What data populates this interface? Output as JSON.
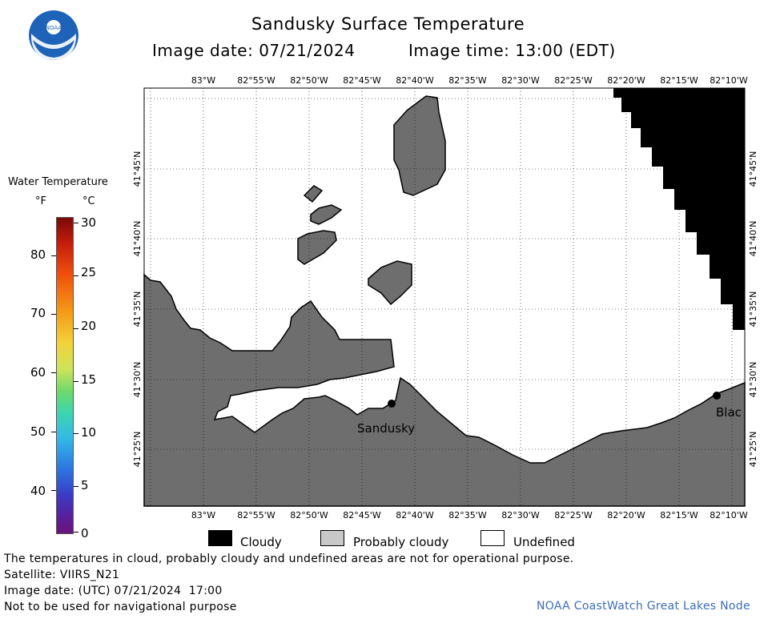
{
  "header": {
    "title": "Sandusky Surface Temperature",
    "image_date": "Image date: 07/21/2024",
    "image_time": "Image time: 13:00 (EDT)"
  },
  "logo": {
    "text": "NOAA"
  },
  "colorbar": {
    "title": "Water Temperature",
    "unit_f": "°F",
    "unit_c": "°C",
    "f_ticks": [
      "40",
      "50",
      "60",
      "70",
      "80"
    ],
    "c_ticks": [
      "0",
      "5",
      "10",
      "15",
      "20",
      "25",
      "30"
    ],
    "range_c": [
      0,
      30
    ]
  },
  "map": {
    "lon_labels": [
      "83°W",
      "82°55'W",
      "82°50'W",
      "82°45'W",
      "82°40'W",
      "82°35'W",
      "82°30'W",
      "82°25'W",
      "82°20'W",
      "82°15'W",
      "82°10'W"
    ],
    "lat_labels": [
      "41°45'N",
      "41°40'N",
      "41°35'N",
      "41°30'N",
      "41°25'N"
    ],
    "places": [
      {
        "name": "Sandusky"
      },
      {
        "name": "Blac"
      }
    ],
    "colors": {
      "land": "#6e6e6e",
      "cloudy": "#000000",
      "water": "#ffffff"
    }
  },
  "key": {
    "cloudy": "Cloudy",
    "probably_cloudy": "Probably cloudy",
    "undefined": "Undefined"
  },
  "footer": {
    "disclaimer": "The temperatures in cloud, probably cloudy and undefined areas are not for operational purpose.",
    "satellite": "Satellite: VIIRS_N21",
    "utc_date": "Image date: (UTC) 07/21/2024  17:00",
    "nav_warning": "Not to be used for navigational purpose",
    "credit": "NOAA CoastWatch Great Lakes Node"
  }
}
